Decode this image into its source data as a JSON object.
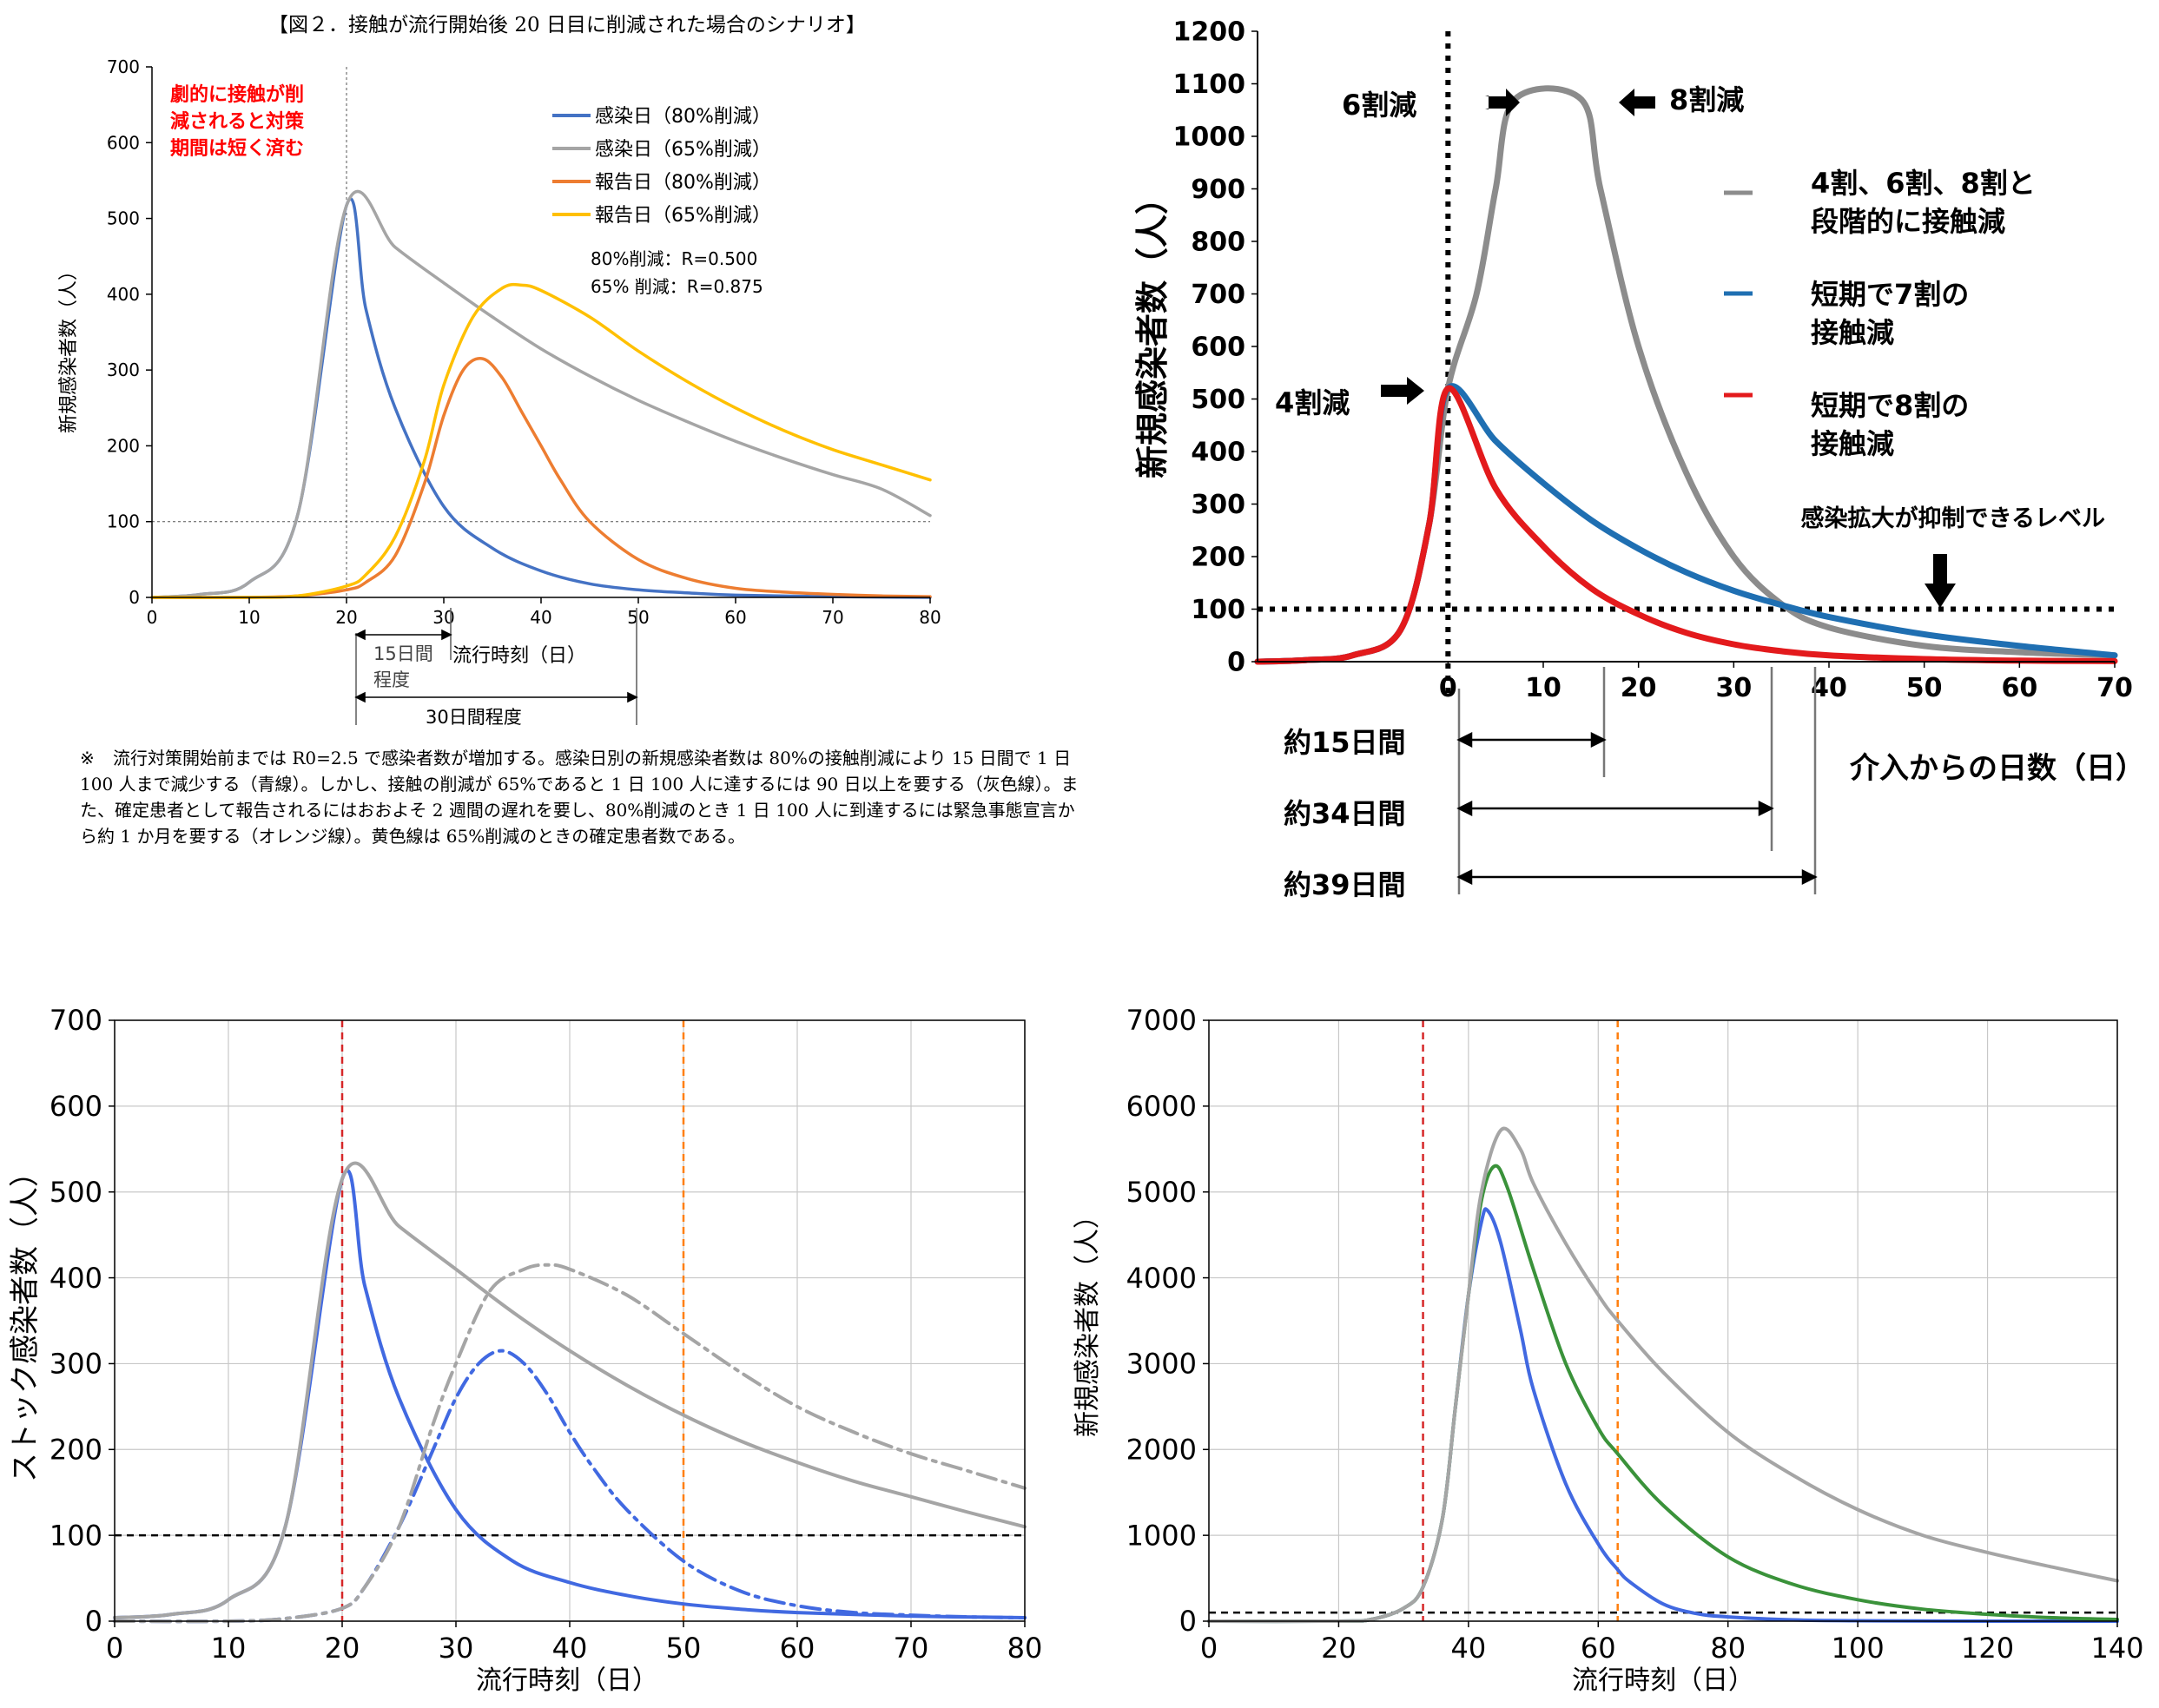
{
  "chart_data": [
    {
      "type": "line",
      "title": "【図２．接触が流行開始後 20 日目に削減された場合のシナリオ】",
      "xlabel": "流行時刻（日）",
      "ylabel": "新規感染者数（人）",
      "xlim": [
        0,
        80
      ],
      "ylim": [
        0,
        700
      ],
      "xticks": [
        0,
        10,
        20,
        30,
        40,
        50,
        60,
        70,
        80
      ],
      "yticks": [
        0,
        100,
        200,
        300,
        400,
        500,
        600,
        700
      ],
      "grid": false,
      "legend_position": "top-right",
      "series": [
        {
          "name": "感染日（80%削減）",
          "color": "#4472c4",
          "kind": "solid",
          "x": [
            0,
            5,
            10,
            15,
            20,
            22,
            25,
            30,
            35,
            40,
            45,
            50,
            55,
            60,
            70,
            80
          ],
          "y": [
            0,
            4,
            20,
            110,
            517,
            380,
            250,
            120,
            65,
            35,
            18,
            10,
            6,
            3,
            1,
            0
          ]
        },
        {
          "name": "感染日（65%削減）",
          "color": "#a5a5a5",
          "kind": "solid",
          "x": [
            0,
            5,
            10,
            15,
            20,
            25,
            30,
            35,
            40,
            45,
            50,
            55,
            60,
            65,
            70,
            75,
            80
          ],
          "y": [
            0,
            4,
            20,
            110,
            517,
            462,
            415,
            370,
            328,
            292,
            260,
            232,
            206,
            183,
            162,
            143,
            108
          ]
        },
        {
          "name": "報告日（80%削減）",
          "color": "#ed7d31",
          "kind": "solid",
          "x": [
            0,
            10,
            15,
            20,
            22,
            25,
            28,
            30,
            32,
            34,
            36,
            38,
            40,
            42,
            45,
            50,
            55,
            60,
            65,
            70,
            75,
            80
          ],
          "y": [
            0,
            0,
            2,
            10,
            20,
            55,
            150,
            240,
            300,
            315,
            290,
            245,
            200,
            155,
            100,
            50,
            25,
            12,
            7,
            4,
            2,
            1
          ]
        },
        {
          "name": "報告日（65%削減）",
          "color": "#ffc000",
          "kind": "solid",
          "x": [
            0,
            10,
            15,
            20,
            22,
            25,
            28,
            30,
            33,
            36,
            38,
            40,
            45,
            50,
            55,
            60,
            65,
            70,
            75,
            80
          ],
          "y": [
            0,
            0,
            2,
            15,
            30,
            80,
            180,
            280,
            370,
            408,
            412,
            405,
            370,
            325,
            285,
            250,
            220,
            195,
            175,
            155
          ]
        }
      ],
      "text_annotations": [
        "劇的に接触が削",
        "減されると対策",
        "期間は短く済む",
        "80%削減：R=0.500",
        "65% 削減：R=0.875",
        "15日間",
        "程度",
        "30日間程度"
      ]
    },
    {
      "type": "line",
      "xlabel": "介入からの日数（日）",
      "ylabel": "新規感染者数（人）",
      "xlim": [
        -20,
        70
      ],
      "ylim": [
        0,
        1200
      ],
      "xticks": [
        0,
        10,
        20,
        30,
        40,
        50,
        60,
        70
      ],
      "yticks": [
        0,
        100,
        200,
        300,
        400,
        500,
        600,
        700,
        800,
        900,
        1000,
        1100,
        1200
      ],
      "grid": false,
      "legend_position": "right",
      "series": [
        {
          "name": "4割、6割、8割と段階的に接触減",
          "color": "#8c8c8c",
          "x": [
            -20,
            -15,
            -10,
            -5,
            -2,
            0,
            3,
            5,
            7,
            14,
            16,
            20,
            25,
            30,
            35,
            40,
            50,
            60,
            70
          ],
          "y": [
            0,
            3,
            12,
            60,
            260,
            520,
            700,
            900,
            1070,
            1070,
            900,
            600,
            360,
            200,
            110,
            65,
            30,
            18,
            12
          ]
        },
        {
          "name": "短期で7割の接触減",
          "color": "#1f6fb2",
          "x": [
            -20,
            -15,
            -10,
            -5,
            -2,
            0,
            5,
            10,
            15,
            20,
            25,
            30,
            35,
            40,
            50,
            60,
            70
          ],
          "y": [
            0,
            3,
            12,
            60,
            260,
            520,
            420,
            340,
            270,
            215,
            170,
            135,
            108,
            85,
            52,
            30,
            12
          ]
        },
        {
          "name": "短期で8割の接触減",
          "color": "#e31a1c",
          "x": [
            -20,
            -15,
            -10,
            -5,
            -2,
            0,
            5,
            10,
            15,
            20,
            25,
            30,
            35,
            40,
            50,
            60,
            70
          ],
          "y": [
            0,
            3,
            12,
            60,
            260,
            520,
            330,
            220,
            140,
            90,
            55,
            33,
            20,
            12,
            5,
            2,
            1
          ]
        }
      ],
      "text_annotations": [
        "6割減",
        "8割減",
        "4割減",
        "感染拡大が抑制できるレベル",
        "約15日間",
        "約34日間",
        "約39日間"
      ]
    },
    {
      "type": "line",
      "xlabel": "流行時刻（日）",
      "ylabel": "ストック感染者数（人）",
      "xlim": [
        0,
        80
      ],
      "ylim": [
        0,
        700
      ],
      "xticks": [
        0,
        10,
        20,
        30,
        40,
        50,
        60,
        70,
        80
      ],
      "yticks": [
        0,
        100,
        200,
        300,
        400,
        500,
        600,
        700
      ],
      "grid": true,
      "series": [
        {
          "color": "#4169e1",
          "kind": "solid",
          "x": [
            0,
            5,
            10,
            15,
            20,
            22,
            25,
            30,
            35,
            40,
            45,
            50,
            55,
            60,
            70,
            80
          ],
          "y": [
            4,
            8,
            25,
            110,
            515,
            390,
            260,
            130,
            70,
            45,
            30,
            20,
            14,
            10,
            6,
            4
          ]
        },
        {
          "color": "#a5a5a5",
          "kind": "solid",
          "x": [
            0,
            5,
            10,
            15,
            20,
            25,
            30,
            35,
            40,
            45,
            50,
            55,
            60,
            65,
            70,
            75,
            80
          ],
          "y": [
            4,
            8,
            25,
            110,
            515,
            460,
            410,
            360,
            315,
            275,
            240,
            210,
            185,
            163,
            145,
            127,
            110
          ]
        },
        {
          "color": "#4169e1",
          "kind": "dashdot",
          "x": [
            0,
            10,
            15,
            20,
            22,
            25,
            28,
            30,
            32,
            34,
            36,
            38,
            40,
            42,
            45,
            50,
            55,
            60,
            65,
            70,
            75,
            80
          ],
          "y": [
            0,
            0,
            3,
            15,
            40,
            110,
            200,
            260,
            300,
            315,
            300,
            265,
            220,
            180,
            130,
            70,
            35,
            18,
            10,
            7,
            5,
            4
          ]
        },
        {
          "color": "#a5a5a5",
          "kind": "dashdot",
          "x": [
            0,
            10,
            15,
            20,
            22,
            25,
            28,
            30,
            33,
            36,
            38,
            40,
            45,
            50,
            55,
            60,
            65,
            70,
            75,
            80
          ],
          "y": [
            0,
            0,
            3,
            15,
            40,
            110,
            230,
            300,
            385,
            410,
            415,
            410,
            380,
            335,
            290,
            250,
            220,
            195,
            175,
            155
          ]
        }
      ],
      "vertical_lines": [
        {
          "x": 20,
          "color": "#d62728"
        },
        {
          "x": 50,
          "color": "#ff7f0e"
        }
      ],
      "horizontal_lines": [
        {
          "y": 100,
          "color": "#000000"
        }
      ]
    },
    {
      "type": "line",
      "xlabel": "流行時刻（日）",
      "ylabel": "新規感染者数（人）",
      "xlim": [
        0,
        140
      ],
      "ylim": [
        0,
        7000
      ],
      "xticks": [
        0,
        20,
        40,
        60,
        80,
        100,
        120,
        140
      ],
      "yticks": [
        0,
        1000,
        2000,
        3000,
        4000,
        5000,
        6000,
        7000
      ],
      "grid": true,
      "series": [
        {
          "color": "#4169e1",
          "kind": "solid",
          "x": [
            0,
            20,
            25,
            30,
            33,
            36,
            38,
            40,
            42,
            43,
            45,
            48,
            50,
            55,
            60,
            63,
            65,
            70,
            75,
            80,
            90,
            100,
            120,
            140
          ],
          "y": [
            0,
            0,
            20,
            150,
            400,
            1200,
            2500,
            3800,
            4650,
            4780,
            4400,
            3400,
            2700,
            1600,
            900,
            600,
            450,
            200,
            90,
            50,
            15,
            5,
            0,
            0
          ]
        },
        {
          "color": "#3a923a",
          "kind": "solid",
          "x": [
            0,
            20,
            25,
            30,
            33,
            36,
            38,
            40,
            42,
            44,
            46,
            50,
            55,
            60,
            63,
            70,
            80,
            90,
            100,
            110,
            120,
            130,
            140
          ],
          "y": [
            0,
            0,
            20,
            150,
            400,
            1200,
            2500,
            3800,
            4900,
            5300,
            5050,
            4100,
            3000,
            2250,
            1950,
            1350,
            750,
            430,
            250,
            140,
            80,
            40,
            20
          ]
        },
        {
          "color": "#a5a5a5",
          "kind": "solid",
          "x": [
            0,
            20,
            25,
            30,
            33,
            36,
            38,
            40,
            42,
            45,
            48,
            50,
            55,
            60,
            63,
            70,
            80,
            90,
            100,
            110,
            120,
            130,
            140
          ],
          "y": [
            0,
            0,
            20,
            150,
            400,
            1200,
            2500,
            3800,
            5000,
            5720,
            5500,
            5100,
            4400,
            3800,
            3500,
            2900,
            2200,
            1700,
            1300,
            1000,
            800,
            630,
            470
          ]
        }
      ],
      "vertical_lines": [
        {
          "x": 33,
          "color": "#d62728"
        },
        {
          "x": 63,
          "color": "#ff7f0e"
        }
      ],
      "horizontal_lines": [
        {
          "y": 100,
          "color": "#000000"
        }
      ]
    }
  ],
  "note": {
    "mark": "※",
    "text": "流行対策開始前までは R0=2.5 で感染者数が増加する。感染日別の新規感染者数は 80%の接触削減により 15 日間で 1 日 100 人まで減少する（青線）。しかし、接触の削減が 65%であると 1 日 100 人に達するには 90 日以上を要する（灰色線）。また、確定患者として報告されるにはおおよそ 2 週間の遅れを要し、80%削減のとき 1 日 100 人に到達するには緊急事態宣言から約 1 か月を要する（オレンジ線）。黄色線は 65%削減のときの確定患者数である。"
  }
}
